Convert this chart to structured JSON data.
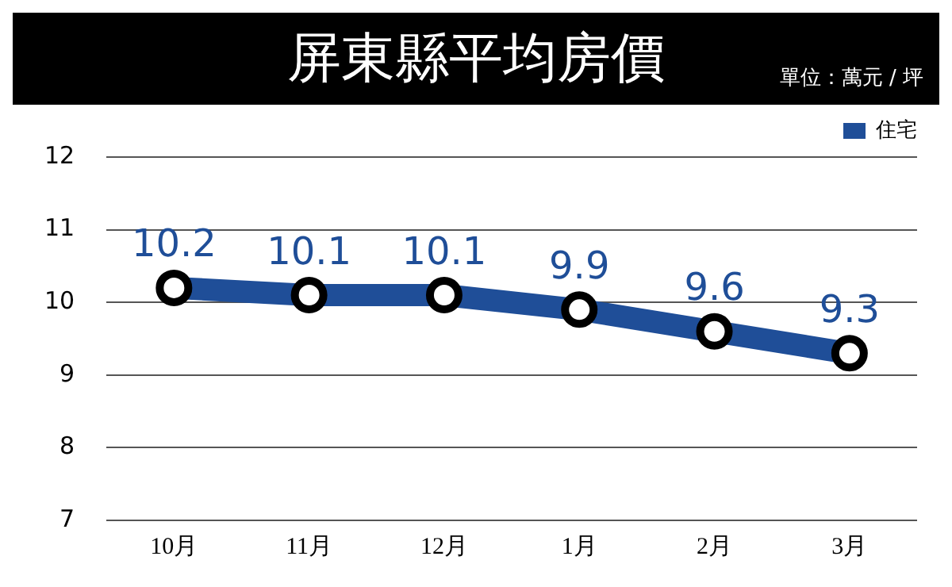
{
  "chart_data": {
    "type": "line",
    "title": "屏東縣平均房價",
    "subtitle": "單位：萬元 / 坪",
    "categories": [
      "10月",
      "11月",
      "12月",
      "1月",
      "2月",
      "3月"
    ],
    "series": [
      {
        "name": "住宅",
        "color": "#1f4e98",
        "values": [
          10.2,
          10.1,
          10.1,
          9.9,
          9.6,
          9.3
        ]
      }
    ],
    "ylim": [
      7,
      12
    ],
    "yticks": [
      7,
      8,
      9,
      10,
      11,
      12
    ],
    "grid": "y",
    "legend": "top right",
    "marker": "circle",
    "line_style": "solid",
    "data_labels": true
  }
}
